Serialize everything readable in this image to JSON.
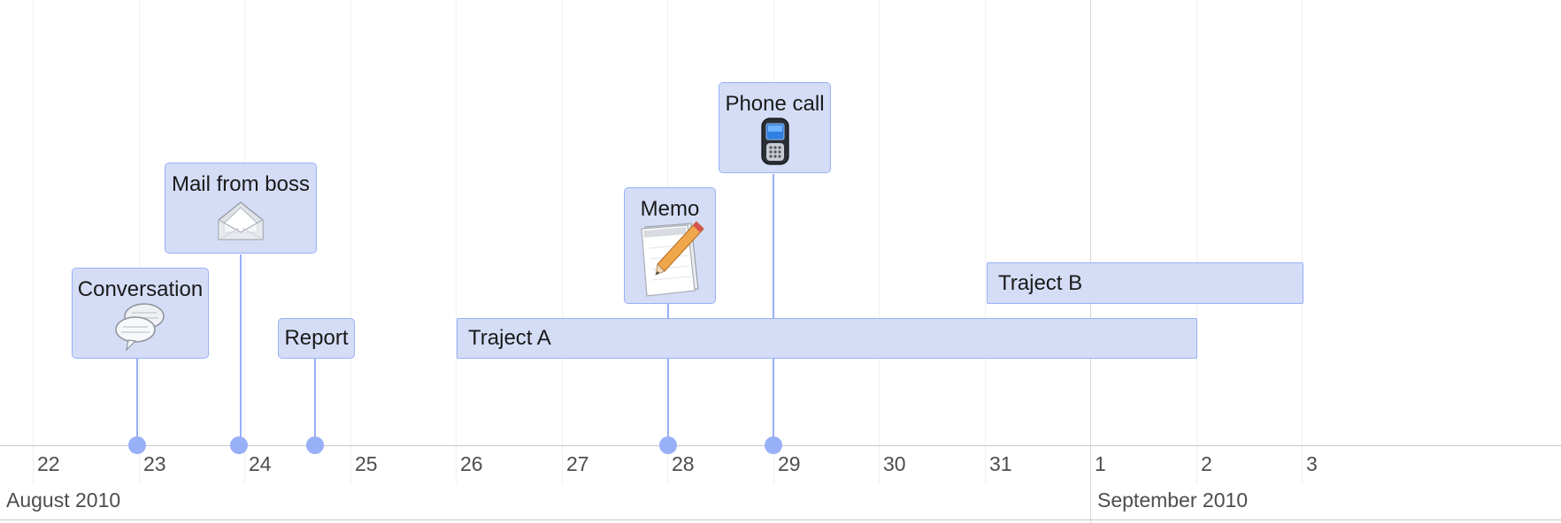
{
  "axis": {
    "tick_labels": [
      "22",
      "23",
      "24",
      "25",
      "26",
      "27",
      "28",
      "29",
      "30",
      "31",
      "1",
      "2",
      "3"
    ],
    "months": [
      "August 2010",
      "September 2010"
    ]
  },
  "events": {
    "conversation": {
      "label": "Conversation",
      "icon": "speech-bubbles-icon",
      "date": "2010-08-23"
    },
    "mail": {
      "label": "Mail from boss",
      "icon": "envelope-icon",
      "date": "2010-08-24"
    },
    "report": {
      "label": "Report",
      "date": "2010-08-24"
    },
    "memo": {
      "label": "Memo",
      "icon": "notepad-pencil-icon",
      "date": "2010-08-28"
    },
    "phone": {
      "label": "Phone call",
      "icon": "mobile-phone-icon",
      "date": "2010-08-29"
    }
  },
  "ranges": {
    "traject_a": {
      "label": "Traject A",
      "start": "2010-08-26",
      "end": "2010-09-02"
    },
    "traject_b": {
      "label": "Traject B",
      "start": "2010-08-31",
      "end": "2010-09-03"
    }
  },
  "colors": {
    "item_fill": "#d5ddf6",
    "item_border": "#97b0f8",
    "axis_text": "#4d4d4d"
  }
}
